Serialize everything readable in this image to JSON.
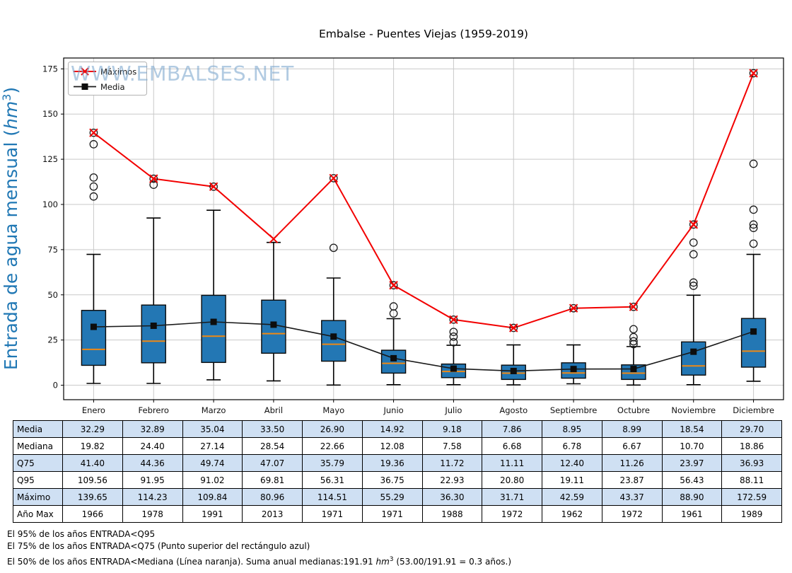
{
  "title": "Embalse - Puentes Viejas (1959-2019)",
  "watermark": "WWW.EMBALSES.NET",
  "y_axis_label": {
    "prefix": "Entrada de agua mensual (",
    "unit": "hm",
    "sup": "3",
    "suffix": ")"
  },
  "legend": {
    "maximos_label": "Máximos",
    "media_label": "Media"
  },
  "colors": {
    "box_fill": "#2377b4",
    "box_edge": "#0a0a0a",
    "median_line": "#ef8914",
    "maximos_line": "#f20000",
    "media_line": "#1a1a1a",
    "grid": "#c9c9c9",
    "axis": "#000000",
    "watermark": "#7fa9cf",
    "y_label": "#1f77b4",
    "table_shade": "#cfe0f3"
  },
  "chart_data": {
    "type": "boxplot-with-lines",
    "title": "Embalse - Puentes Viejas (1959-2019)",
    "ylabel": "Entrada de agua mensual (hm3)",
    "categories": [
      "Enero",
      "Febrero",
      "Marzo",
      "Abril",
      "Mayo",
      "Junio",
      "Julio",
      "Agosto",
      "Septiembre",
      "Octubre",
      "Noviembre",
      "Diciembre"
    ],
    "y_ticks": [
      0,
      25,
      50,
      75,
      100,
      125,
      150,
      175
    ],
    "ylim": [
      -8,
      181
    ],
    "grid": true,
    "legend_position": "upper-left",
    "series": [
      {
        "name": "Máximos",
        "type": "line",
        "marker": "x-circle",
        "values": [
          139.65,
          114.23,
          109.84,
          80.96,
          114.51,
          55.29,
          36.3,
          31.71,
          42.59,
          43.37,
          88.9,
          172.59
        ]
      },
      {
        "name": "Media",
        "type": "line",
        "marker": "square",
        "values": [
          32.29,
          32.89,
          35.04,
          33.5,
          26.9,
          14.92,
          9.18,
          7.86,
          8.95,
          8.99,
          18.54,
          29.7
        ]
      }
    ],
    "boxes": [
      {
        "month": "Enero",
        "whisker_low": 1.0,
        "q1": 11.0,
        "median": 19.82,
        "q3": 41.4,
        "whisker_high": 72.4,
        "outliers": [
          104.4,
          109.9,
          114.9,
          133.3
        ],
        "max_circled": true
      },
      {
        "month": "Febrero",
        "whisker_low": 1.0,
        "q1": 12.4,
        "median": 24.4,
        "q3": 44.36,
        "whisker_high": 92.5,
        "outliers": [
          110.9
        ],
        "max_circled": true
      },
      {
        "month": "Marzo",
        "whisker_low": 3.0,
        "q1": 12.6,
        "median": 27.14,
        "q3": 49.74,
        "whisker_high": 96.8,
        "outliers": [],
        "max_circled": true
      },
      {
        "month": "Abril",
        "whisker_low": 2.4,
        "q1": 17.7,
        "median": 28.54,
        "q3": 47.07,
        "whisker_high": 79.0,
        "outliers": [],
        "max_circled": false
      },
      {
        "month": "Mayo",
        "whisker_low": 0.1,
        "q1": 13.3,
        "median": 22.66,
        "q3": 35.79,
        "whisker_high": 59.3,
        "outliers": [
          76.0
        ],
        "max_circled": true
      },
      {
        "month": "Junio",
        "whisker_low": 0.3,
        "q1": 6.7,
        "median": 12.08,
        "q3": 19.36,
        "whisker_high": 36.8,
        "outliers": [
          39.7,
          43.6
        ],
        "max_circled": true
      },
      {
        "month": "Julio",
        "whisker_low": 0.3,
        "q1": 4.2,
        "median": 7.58,
        "q3": 11.72,
        "whisker_high": 22.1,
        "outliers": [
          23.8,
          26.9,
          29.5
        ],
        "max_circled": true
      },
      {
        "month": "Agosto",
        "whisker_low": 0.2,
        "q1": 3.2,
        "median": 6.68,
        "q3": 11.11,
        "whisker_high": 22.3,
        "outliers": [],
        "max_circled": true
      },
      {
        "month": "Septiembre",
        "whisker_low": 0.8,
        "q1": 3.9,
        "median": 6.78,
        "q3": 12.4,
        "whisker_high": 22.3,
        "outliers": [],
        "max_circled": true
      },
      {
        "month": "Octubre",
        "whisker_low": 0.1,
        "q1": 3.2,
        "median": 6.67,
        "q3": 11.26,
        "whisker_high": 21.4,
        "outliers": [
          22.7,
          24.3,
          26.6,
          31.0
        ],
        "max_circled": true
      },
      {
        "month": "Noviembre",
        "whisker_low": 0.3,
        "q1": 5.6,
        "median": 10.7,
        "q3": 23.97,
        "whisker_high": 49.8,
        "outliers": [
          55.0,
          56.8,
          72.4,
          78.9
        ],
        "max_circled": true
      },
      {
        "month": "Diciembre",
        "whisker_low": 2.2,
        "q1": 10.0,
        "median": 18.86,
        "q3": 36.93,
        "whisker_high": 72.4,
        "outliers": [
          78.3,
          87.0,
          88.9,
          97.1,
          122.5
        ],
        "max_circled": true
      }
    ]
  },
  "table": {
    "rows": [
      {
        "label": "Media",
        "shaded": true,
        "values": [
          "32.29",
          "32.89",
          "35.04",
          "33.50",
          "26.90",
          "14.92",
          "9.18",
          "7.86",
          "8.95",
          "8.99",
          "18.54",
          "29.70"
        ]
      },
      {
        "label": "Mediana",
        "shaded": false,
        "values": [
          "19.82",
          "24.40",
          "27.14",
          "28.54",
          "22.66",
          "12.08",
          "7.58",
          "6.68",
          "6.78",
          "6.67",
          "10.70",
          "18.86"
        ]
      },
      {
        "label": "Q75",
        "shaded": true,
        "values": [
          "41.40",
          "44.36",
          "49.74",
          "47.07",
          "35.79",
          "19.36",
          "11.72",
          "11.11",
          "12.40",
          "11.26",
          "23.97",
          "36.93"
        ]
      },
      {
        "label": "Q95",
        "shaded": false,
        "values": [
          "109.56",
          "91.95",
          "91.02",
          "69.81",
          "56.31",
          "36.75",
          "22.93",
          "20.80",
          "19.11",
          "23.87",
          "56.43",
          "88.11"
        ]
      },
      {
        "label": "Máximo",
        "shaded": true,
        "values": [
          "139.65",
          "114.23",
          "109.84",
          "80.96",
          "114.51",
          "55.29",
          "36.30",
          "31.71",
          "42.59",
          "43.37",
          "88.90",
          "172.59"
        ]
      },
      {
        "label": "Año Max",
        "shaded": false,
        "values": [
          "1966",
          "1978",
          "1991",
          "2013",
          "1971",
          "1971",
          "1988",
          "1972",
          "1962",
          "1972",
          "1961",
          "1989"
        ]
      }
    ]
  },
  "footnotes": {
    "line1": "El 95% de los años ENTRADA<Q95",
    "line2": "El 75% de los años ENTRADA<Q75 (Punto superior del rectángulo azul)",
    "line3_prefix": "El 50% de los años ENTRADA<Mediana (Línea naranja). Suma anual medianas:191.91 ",
    "line3_unit": "hm",
    "line3_sup": "3",
    "line3_suffix": " (53.00/191.91 = 0.3 años.)"
  }
}
